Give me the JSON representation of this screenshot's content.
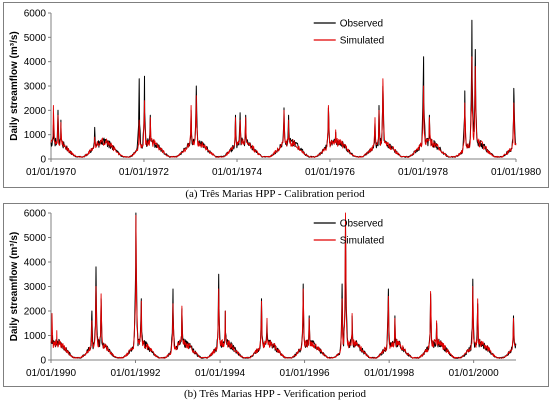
{
  "figure": {
    "captions": [
      "(a)   Três Marias HPP - Calibration period",
      "(b)   Três Marias HPP - Verification period"
    ]
  },
  "colors": {
    "observed": "#000000",
    "simulated": "#e00000",
    "axis": "#808080"
  },
  "chart_data": [
    {
      "type": "line",
      "ylabel": "Daily streamflow (m³/s)",
      "ylim": [
        0,
        6000
      ],
      "yticks": [
        0,
        1000,
        2000,
        3000,
        4000,
        5000,
        6000
      ],
      "xticks": [
        "01/01/1970",
        "01/01/1972",
        "01/01/1974",
        "01/01/1976",
        "01/01/1978",
        "01/01/1980"
      ],
      "xlim": [
        "1970-01-01",
        "1980-01-01"
      ],
      "legend": "top-right",
      "series": [
        {
          "name": "Observed",
          "color": "#000000",
          "peaks": [
            [
              "1970-01-20",
              1400
            ],
            [
              "1970-02-25",
              2000
            ],
            [
              "1970-03-20",
              1600
            ],
            [
              "1970-12-10",
              1300
            ],
            [
              "1971-03-05",
              800
            ],
            [
              "1971-11-25",
              3300
            ],
            [
              "1972-01-05",
              3400
            ],
            [
              "1972-02-20",
              1800
            ],
            [
              "1973-01-05",
              2000
            ],
            [
              "1973-02-15",
              3000
            ],
            [
              "1973-12-20",
              1800
            ],
            [
              "1974-01-25",
              1900
            ],
            [
              "1974-03-10",
              1800
            ],
            [
              "1975-01-05",
              2100
            ],
            [
              "1975-02-10",
              1800
            ],
            [
              "1975-12-20",
              2100
            ],
            [
              "1976-02-15",
              1100
            ],
            [
              "1976-12-20",
              1500
            ],
            [
              "1977-01-20",
              2200
            ],
            [
              "1977-02-20",
              3000
            ],
            [
              "1978-01-05",
              4200
            ],
            [
              "1978-02-20",
              1800
            ],
            [
              "1978-11-25",
              2800
            ],
            [
              "1979-01-20",
              5700
            ],
            [
              "1979-02-15",
              4500
            ],
            [
              "1979-12-15",
              2900
            ]
          ]
        },
        {
          "name": "Simulated",
          "color": "#e00000",
          "peaks": [
            [
              "1970-01-20",
              2200
            ],
            [
              "1970-02-25",
              1800
            ],
            [
              "1970-03-20",
              1500
            ],
            [
              "1970-12-10",
              900
            ],
            [
              "1971-03-05",
              700
            ],
            [
              "1971-11-25",
              1600
            ],
            [
              "1972-01-05",
              2400
            ],
            [
              "1972-02-20",
              1700
            ],
            [
              "1973-01-05",
              2200
            ],
            [
              "1973-02-15",
              2600
            ],
            [
              "1973-12-20",
              1700
            ],
            [
              "1974-01-25",
              1600
            ],
            [
              "1974-03-10",
              1700
            ],
            [
              "1975-01-05",
              2000
            ],
            [
              "1975-02-10",
              1600
            ],
            [
              "1975-12-20",
              2200
            ],
            [
              "1976-02-15",
              1200
            ],
            [
              "1976-12-20",
              1700
            ],
            [
              "1977-01-20",
              2000
            ],
            [
              "1977-02-20",
              3300
            ],
            [
              "1978-01-05",
              3000
            ],
            [
              "1978-02-20",
              1700
            ],
            [
              "1978-11-25",
              2300
            ],
            [
              "1979-01-20",
              4200
            ],
            [
              "1979-02-15",
              3800
            ],
            [
              "1979-12-15",
              2300
            ]
          ]
        }
      ]
    },
    {
      "type": "line",
      "ylabel": "Daily streamflow (m³/s)",
      "ylim": [
        0,
        6000
      ],
      "yticks": [
        0,
        1000,
        2000,
        3000,
        4000,
        5000,
        6000
      ],
      "xticks": [
        "01/01/1990",
        "01/01/1992",
        "01/01/1994",
        "01/01/1996",
        "01/01/1998",
        "01/01/2000"
      ],
      "xlim": [
        "1990-01-01",
        "2001-01-01"
      ],
      "legend": "top-right",
      "series": [
        {
          "name": "Observed",
          "color": "#000000",
          "peaks": [
            [
              "1990-01-10",
              1000
            ],
            [
              "1990-02-20",
              700
            ],
            [
              "1990-12-20",
              2000
            ],
            [
              "1991-01-25",
              3800
            ],
            [
              "1991-03-10",
              2500
            ],
            [
              "1992-01-05",
              6000
            ],
            [
              "1992-02-20",
              2500
            ],
            [
              "1992-11-20",
              2900
            ],
            [
              "1993-02-05",
              2100
            ],
            [
              "1993-12-20",
              3500
            ],
            [
              "1994-02-15",
              2000
            ],
            [
              "1994-12-25",
              2500
            ],
            [
              "1995-02-10",
              1600
            ],
            [
              "1995-12-20",
              3100
            ],
            [
              "1996-02-10",
              1800
            ],
            [
              "1996-11-20",
              3100
            ],
            [
              "1996-12-20",
              5600
            ],
            [
              "1997-02-15",
              1800
            ],
            [
              "1997-12-25",
              2900
            ],
            [
              "1998-02-20",
              1800
            ],
            [
              "1998-12-25",
              2700
            ],
            [
              "1999-02-15",
              1500
            ],
            [
              "1999-12-25",
              3300
            ],
            [
              "2000-02-05",
              2300
            ],
            [
              "2000-12-10",
              1800
            ]
          ]
        },
        {
          "name": "Simulated",
          "color": "#e00000",
          "peaks": [
            [
              "1990-01-10",
              1900
            ],
            [
              "1990-02-20",
              1200
            ],
            [
              "1990-12-20",
              1600
            ],
            [
              "1991-01-25",
              3000
            ],
            [
              "1991-03-10",
              2700
            ],
            [
              "1992-01-05",
              5900
            ],
            [
              "1992-02-20",
              2400
            ],
            [
              "1992-11-20",
              2300
            ],
            [
              "1993-02-05",
              2200
            ],
            [
              "1993-12-20",
              2900
            ],
            [
              "1994-02-15",
              2000
            ],
            [
              "1994-12-25",
              2400
            ],
            [
              "1995-02-10",
              1700
            ],
            [
              "1995-12-20",
              2900
            ],
            [
              "1996-02-10",
              1700
            ],
            [
              "1996-11-20",
              2500
            ],
            [
              "1996-12-20",
              6000
            ],
            [
              "1997-02-15",
              1900
            ],
            [
              "1997-12-25",
              2600
            ],
            [
              "1998-02-20",
              1700
            ],
            [
              "1998-12-25",
              2800
            ],
            [
              "1999-02-15",
              1600
            ],
            [
              "1999-12-25",
              3000
            ],
            [
              "2000-02-05",
              2500
            ],
            [
              "2000-12-10",
              1700
            ]
          ]
        }
      ]
    }
  ]
}
